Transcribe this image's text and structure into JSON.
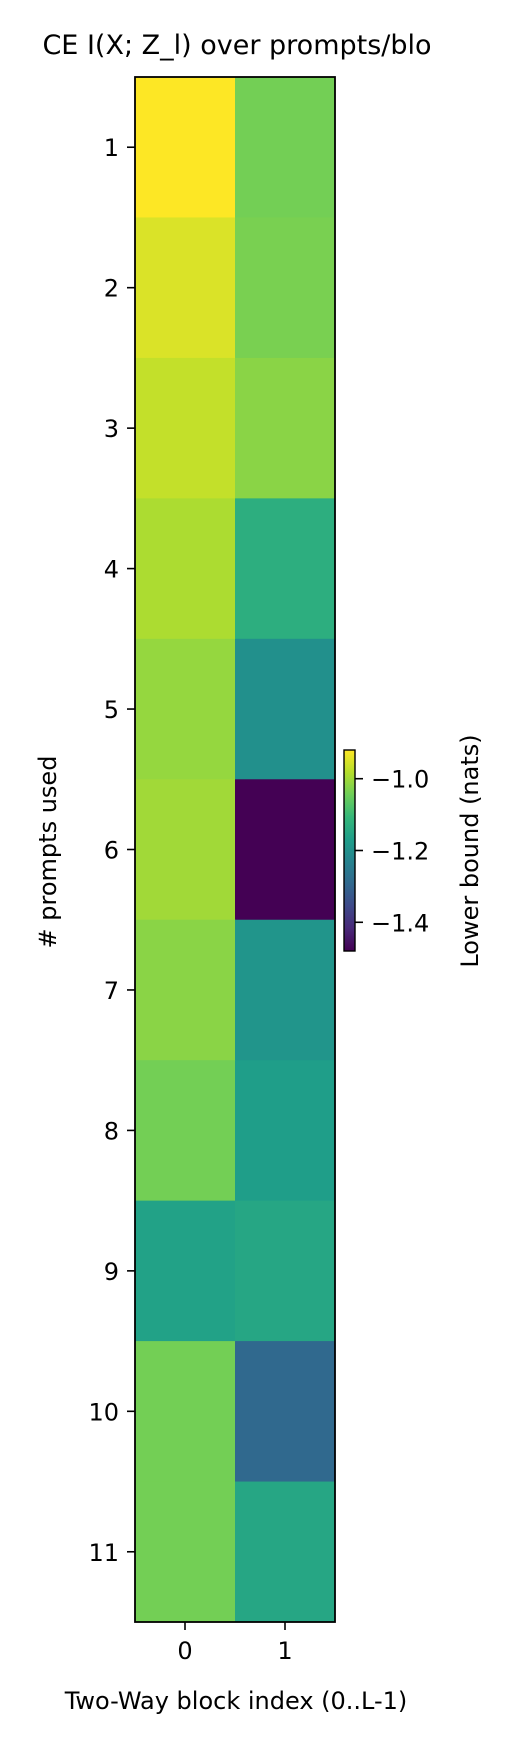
{
  "chart_data": {
    "type": "heatmap",
    "title": "CE  I(X; Z_l) over prompts/blo",
    "xlabel": "Two-Way block index (0..L-1)",
    "ylabel": "# prompts used",
    "x_categories": [
      "0",
      "1"
    ],
    "y_categories": [
      "1",
      "2",
      "3",
      "4",
      "5",
      "6",
      "7",
      "8",
      "9",
      "10",
      "11"
    ],
    "values": [
      [
        -0.92,
        -1.04
      ],
      [
        -0.95,
        -1.035
      ],
      [
        -0.97,
        -1.02
      ],
      [
        -0.99,
        -1.13
      ],
      [
        -1.01,
        -1.2
      ],
      [
        -1.0,
        -1.48
      ],
      [
        -1.02,
        -1.19
      ],
      [
        -1.04,
        -1.17
      ],
      [
        -1.16,
        -1.15
      ],
      [
        -1.04,
        -1.29
      ],
      [
        -1.04,
        -1.15
      ]
    ],
    "colorbar": {
      "label": "Lower bound (nats)",
      "ticks": [
        -1.0,
        -1.2,
        -1.4
      ],
      "tick_labels": [
        "−1.0",
        "−1.2",
        "−1.4"
      ],
      "range": [
        -1.48,
        -0.92
      ]
    },
    "colormap": "viridis"
  }
}
